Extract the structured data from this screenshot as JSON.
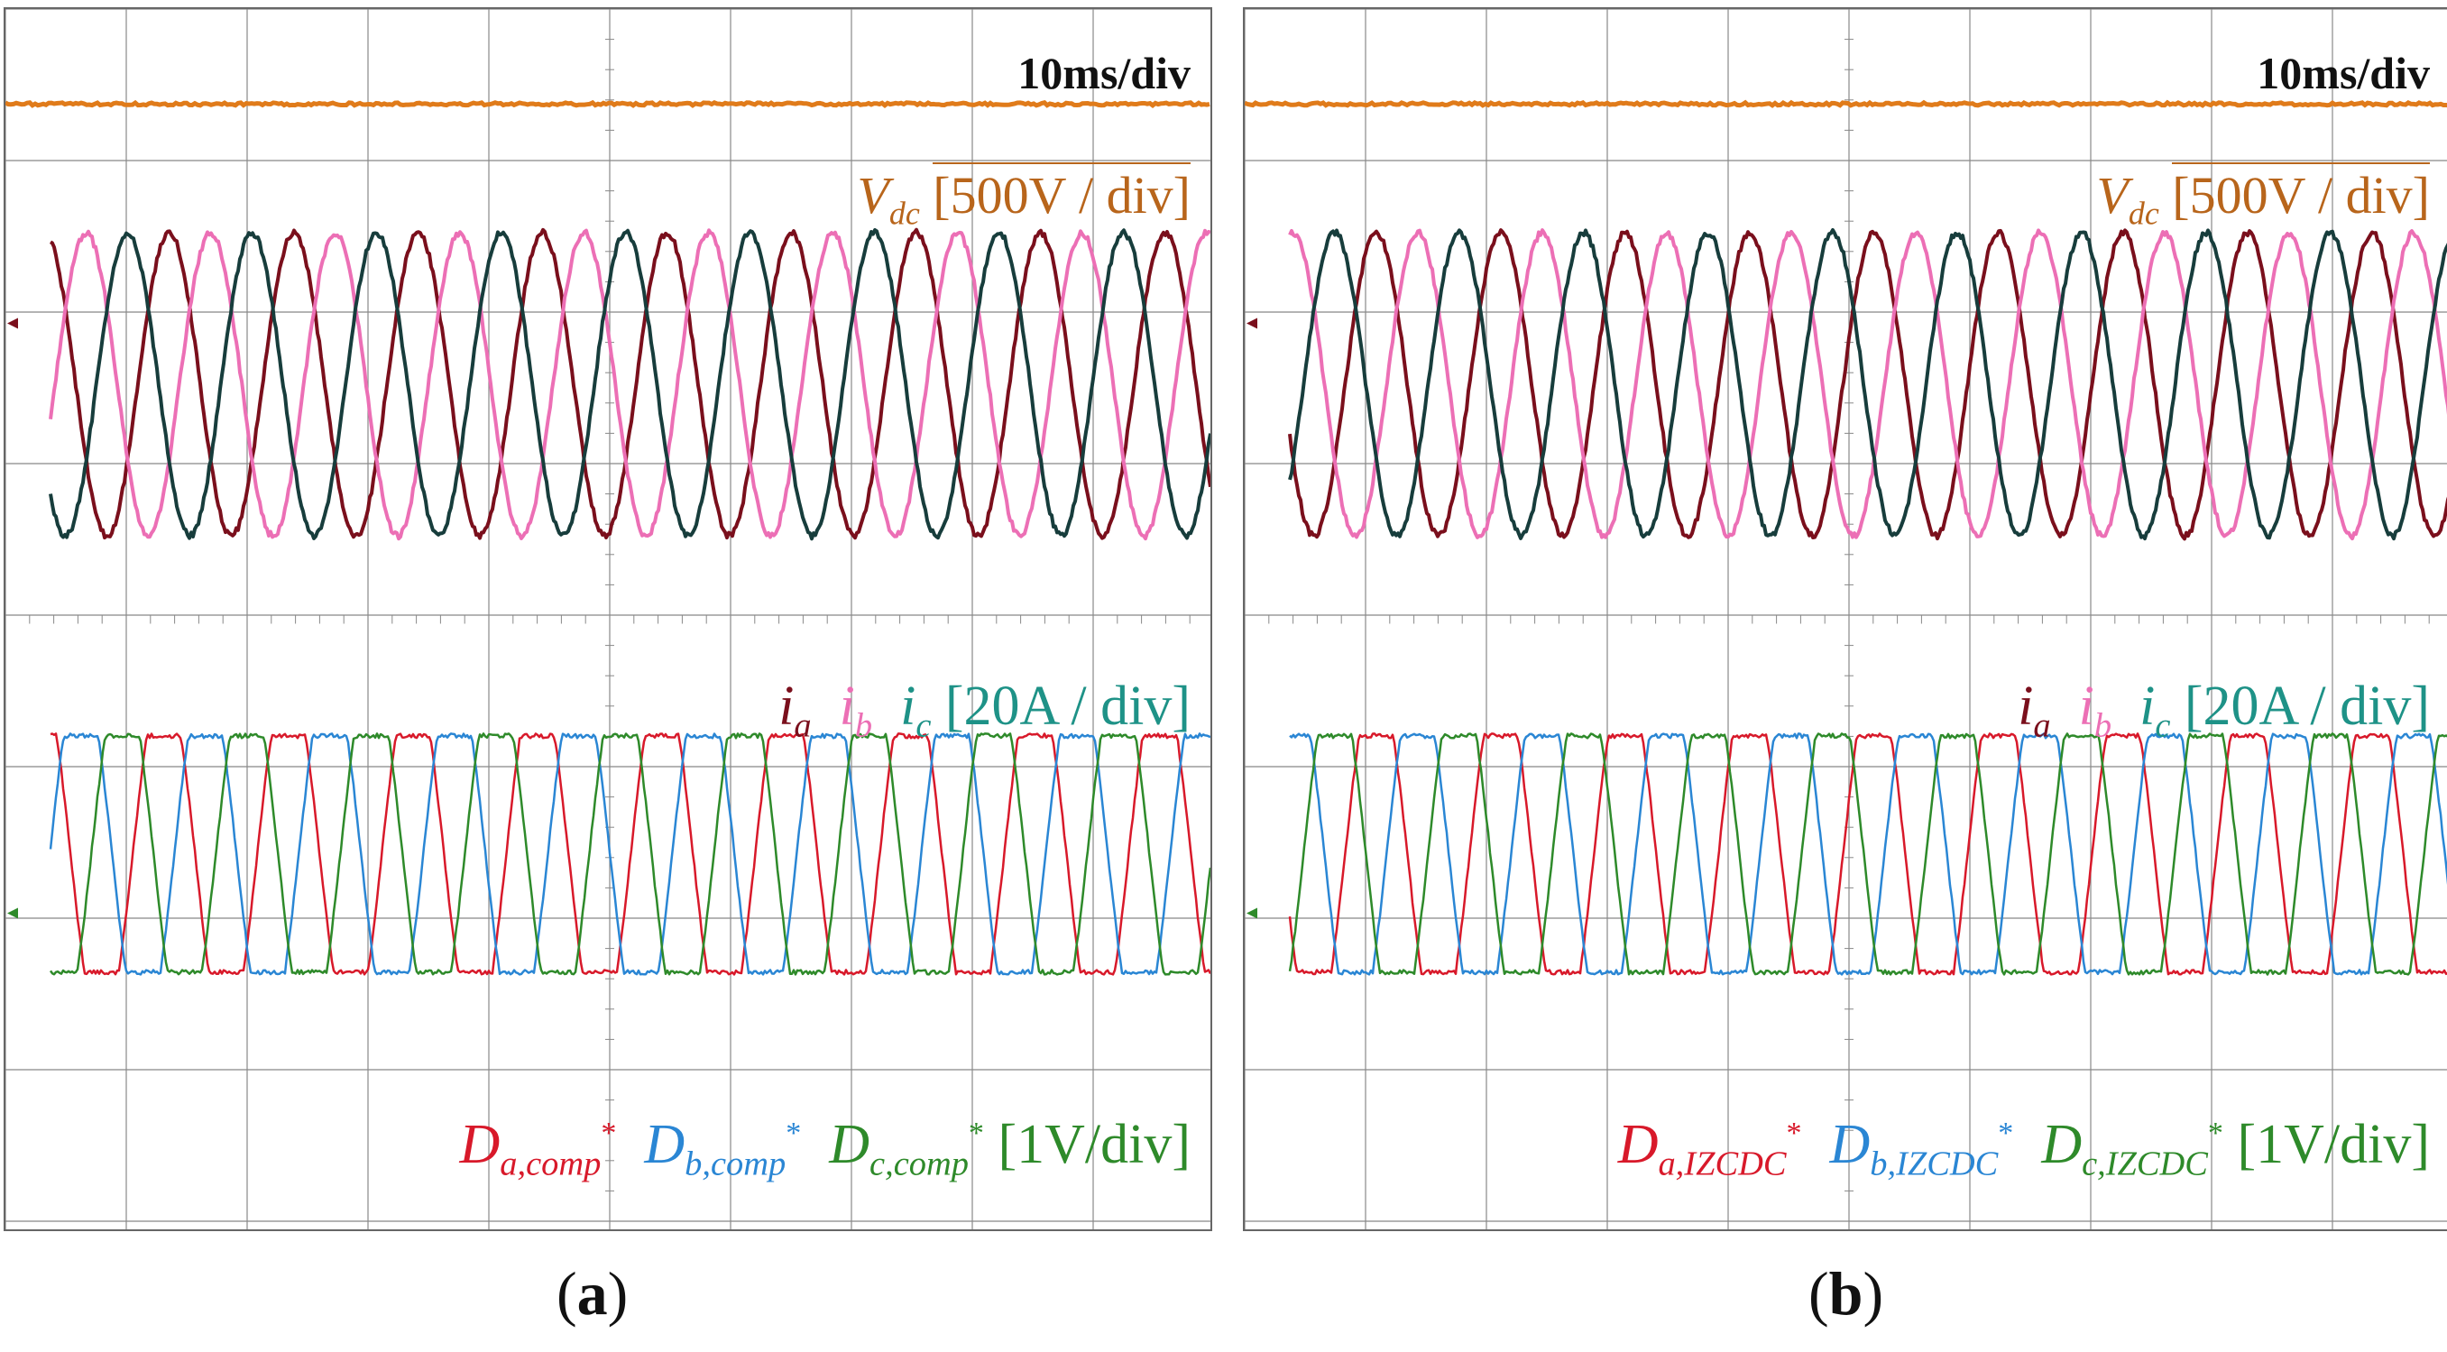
{
  "colors": {
    "vdc": "#e07b1a",
    "vdc_label": "#b8651b",
    "ia": "#7a0f1c",
    "ib": "#ec6fb5",
    "ic": "#173d3c",
    "ic_label": "#1e9287",
    "da": "#d8192a",
    "db": "#2a86d4",
    "dc": "#2e8a2a",
    "grid": "#888888"
  },
  "chart_data": [
    {
      "type": "line",
      "panel": "a",
      "caption": "a",
      "time_scale_label": "10ms/div",
      "grid": {
        "x_divisions": 10,
        "y_divisions": 8,
        "minor_ticks_per_division": 5
      },
      "x_axis": {
        "unit": "ms",
        "range": [
          0,
          100
        ],
        "per_div": 10
      },
      "vdc_label": {
        "symbol": "V",
        "subscript": "dc",
        "scale": "[500V / div]"
      },
      "current_label": {
        "ia": "i",
        "ia_sub": "a",
        "ib": "i",
        "ib_sub": "b",
        "ic": "i",
        "ic_sub": "c",
        "scale": "[20A / div]"
      },
      "duty_label": {
        "da": "D",
        "da_sub": "a,comp",
        "db": "D",
        "db_sub": "b,comp",
        "dc": "D",
        "dc_sub": "c,comp",
        "star": "*",
        "scale": "[1V/div]"
      },
      "series": [
        {
          "name": "V_dc",
          "kind": "dc",
          "level_div": 3.4,
          "scale": "500V/div"
        },
        {
          "name": "i_a",
          "kind": "sine",
          "period_ms": 10.3,
          "phase_deg": 107,
          "center_div": 1.55,
          "amplitude_div": 1.0,
          "scale": "20A/div"
        },
        {
          "name": "i_b",
          "kind": "sine",
          "period_ms": 10.3,
          "phase_deg": -13,
          "center_div": 1.55,
          "amplitude_div": 1.0,
          "scale": "20A/div"
        },
        {
          "name": "i_c",
          "kind": "sine",
          "period_ms": 10.3,
          "phase_deg": 227,
          "center_div": 1.55,
          "amplitude_div": 1.0,
          "scale": "20A/div"
        },
        {
          "name": "D_a,comp*",
          "kind": "clipped_sine",
          "period_ms": 10.3,
          "phase_deg": 122,
          "center_div": -1.55,
          "amplitude_div": 0.78,
          "scale": "1V/div"
        },
        {
          "name": "D_b,comp*",
          "kind": "clipped_sine",
          "period_ms": 10.3,
          "phase_deg": 2,
          "center_div": -1.55,
          "amplitude_div": 0.78,
          "scale": "1V/div"
        },
        {
          "name": "D_c,comp*",
          "kind": "clipped_sine",
          "period_ms": 10.3,
          "phase_deg": 242,
          "center_div": -1.55,
          "amplitude_div": 0.78,
          "scale": "1V/div"
        }
      ]
    },
    {
      "type": "line",
      "panel": "b",
      "caption": "b",
      "time_scale_label": "10ms/div",
      "grid": {
        "x_divisions": 10,
        "y_divisions": 8,
        "minor_ticks_per_division": 5
      },
      "x_axis": {
        "unit": "ms",
        "range": [
          0,
          100
        ],
        "per_div": 10
      },
      "vdc_label": {
        "symbol": "V",
        "subscript": "dc",
        "scale": "[500V / div]"
      },
      "current_label": {
        "ia": "i",
        "ia_sub": "a",
        "ib": "i",
        "ib_sub": "b",
        "ic": "i",
        "ic_sub": "c",
        "scale": "[20A / div]"
      },
      "duty_label": {
        "da": "D",
        "da_sub": "a,IZCDC",
        "db": "D",
        "db_sub": "b,IZCDC",
        "dc": "D",
        "dc_sub": "c,IZCDC",
        "star": "*",
        "scale": "[1V/div]"
      },
      "series": [
        {
          "name": "V_dc",
          "kind": "dc",
          "level_div": 3.4,
          "scale": "500V/div"
        },
        {
          "name": "i_a",
          "kind": "sine",
          "period_ms": 10.3,
          "phase_deg": 200,
          "center_div": 1.55,
          "amplitude_div": 1.0,
          "scale": "20A/div"
        },
        {
          "name": "i_b",
          "kind": "sine",
          "period_ms": 10.3,
          "phase_deg": 80,
          "center_div": 1.55,
          "amplitude_div": 1.0,
          "scale": "20A/div"
        },
        {
          "name": "i_c",
          "kind": "sine",
          "period_ms": 10.3,
          "phase_deg": 320,
          "center_div": 1.55,
          "amplitude_div": 1.0,
          "scale": "20A/div"
        },
        {
          "name": "D_a,IZCDC*",
          "kind": "clipped_sine",
          "period_ms": 10.3,
          "phase_deg": 200,
          "center_div": -1.55,
          "amplitude_div": 0.78,
          "scale": "1V/div"
        },
        {
          "name": "D_b,IZCDC*",
          "kind": "clipped_sine",
          "period_ms": 10.3,
          "phase_deg": 80,
          "center_div": -1.55,
          "amplitude_div": 0.78,
          "scale": "1V/div"
        },
        {
          "name": "D_c,IZCDC*",
          "kind": "clipped_sine",
          "period_ms": 10.3,
          "phase_deg": 320,
          "center_div": -1.55,
          "amplitude_div": 0.78,
          "scale": "1V/div"
        }
      ]
    }
  ]
}
